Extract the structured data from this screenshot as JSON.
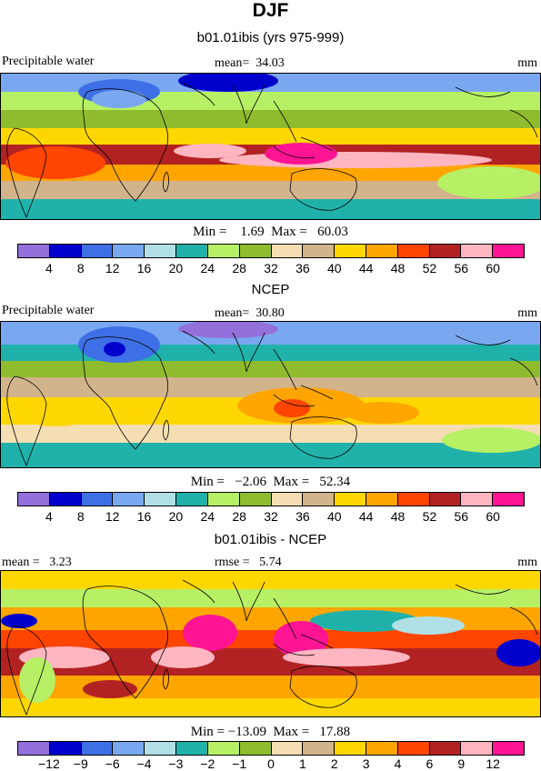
{
  "title": "DJF",
  "panels": [
    {
      "title": "b01.01ibis (yrs 975-999)",
      "left_label": "Precipitable water",
      "middle_label": "mean=  34.03",
      "units": "mm",
      "minmax": "Min =    1.69  Max =   60.03",
      "colorbar": {
        "colors": [
          "#9370db",
          "#0000cd",
          "#3f6fe6",
          "#7aa8f0",
          "#b0e0e6",
          "#20b2aa",
          "#b7f065",
          "#8fbc2e",
          "#f5deb3",
          "#d2b48c",
          "#ffd700",
          "#ffa500",
          "#ff4500",
          "#b22222",
          "#ffb6c1",
          "#ff1493"
        ],
        "ticks": [
          "4",
          "8",
          "12",
          "16",
          "20",
          "24",
          "28",
          "32",
          "36",
          "40",
          "44",
          "48",
          "52",
          "56",
          "60"
        ]
      }
    },
    {
      "title": "NCEP",
      "left_label": "Precipitable water",
      "middle_label": "mean=  30.80",
      "units": "mm",
      "minmax": "Min =   −2.06  Max =   52.34",
      "colorbar": {
        "colors": [
          "#9370db",
          "#0000cd",
          "#3f6fe6",
          "#7aa8f0",
          "#b0e0e6",
          "#20b2aa",
          "#b7f065",
          "#8fbc2e",
          "#f5deb3",
          "#d2b48c",
          "#ffd700",
          "#ffa500",
          "#ff4500",
          "#b22222",
          "#ffb6c1",
          "#ff1493"
        ],
        "ticks": [
          "4",
          "8",
          "12",
          "16",
          "20",
          "24",
          "28",
          "32",
          "36",
          "40",
          "44",
          "48",
          "52",
          "56",
          "60"
        ]
      }
    },
    {
      "title": "b01.01ibis - NCEP",
      "left_label": "mean =   3.23",
      "middle_label": "rmse =   5.74",
      "units": "mm",
      "minmax": "Min = −13.09  Max =   17.88",
      "colorbar": {
        "colors": [
          "#9370db",
          "#0000cd",
          "#3f6fe6",
          "#7aa8f0",
          "#b0e0e6",
          "#20b2aa",
          "#b7f065",
          "#8fbc2e",
          "#f5deb3",
          "#d2b48c",
          "#ffd700",
          "#ffa500",
          "#ff4500",
          "#b22222",
          "#ffb6c1",
          "#ff1493"
        ],
        "ticks": [
          "−12",
          "−9",
          "−6",
          "−4",
          "−3",
          "−2",
          "−1",
          "0",
          "1",
          "2",
          "3",
          "4",
          "6",
          "9",
          "12"
        ]
      }
    }
  ]
}
